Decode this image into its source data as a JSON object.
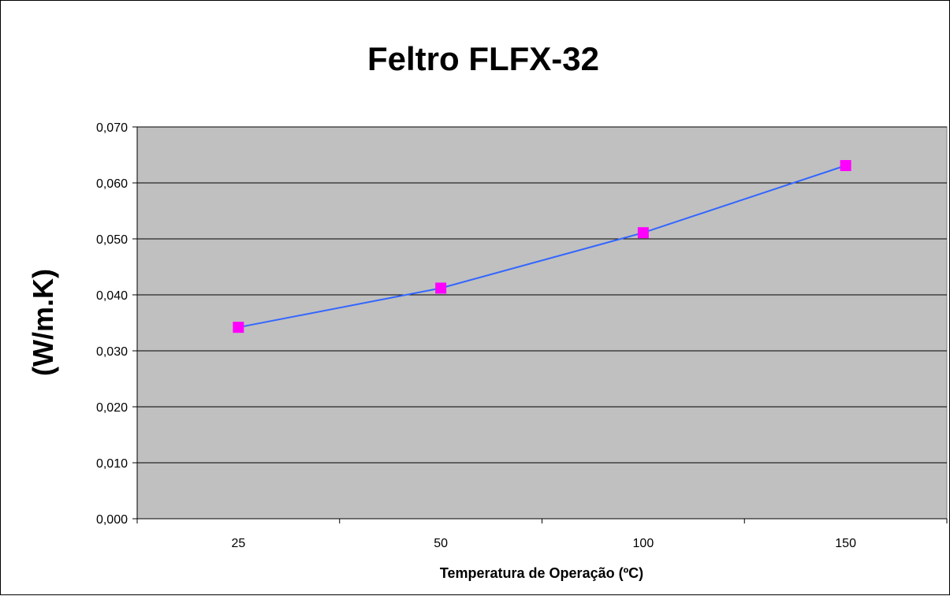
{
  "chart_data": {
    "type": "line",
    "title": "Feltro FLFX-32",
    "xlabel": "Temperatura de Operação (ºC)",
    "ylabel": "(W/m.K)",
    "categories": [
      "25",
      "50",
      "100",
      "150"
    ],
    "series": [
      {
        "values": [
          0.0342,
          0.0412,
          0.0511,
          0.0631
        ]
      }
    ],
    "ylim": [
      0,
      0.07
    ],
    "yticks": [
      "0,000",
      "0,010",
      "0,020",
      "0,030",
      "0,040",
      "0,050",
      "0,060",
      "0,070"
    ],
    "grid": true,
    "legend": "none",
    "colors": {
      "plot_background": "#c0c0c0",
      "line": "#3366ff",
      "marker": "#ff00ff",
      "gridline": "#000000"
    }
  }
}
